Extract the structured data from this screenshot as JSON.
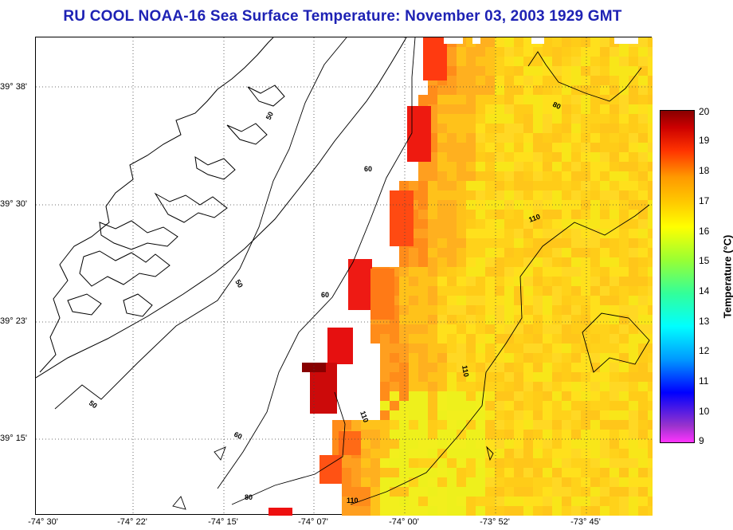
{
  "title": "RU COOL  NOAA-16  Sea Surface Temperature:  November 03, 2003 1929 GMT",
  "lat_labels": [
    "39° 38'",
    "39° 30'",
    "39° 23'",
    "39° 15'"
  ],
  "lon_labels": [
    "-74° 30'",
    "-74° 22'",
    "-74° 15'",
    "-74° 07'",
    "-74° 00'",
    "-73° 52'",
    "-73° 45'"
  ],
  "colorbar": {
    "title": "Temperature (°C)",
    "ticks": [
      "20",
      "19",
      "18",
      "17",
      "16",
      "15",
      "14",
      "13",
      "12",
      "11",
      "10",
      "9"
    ],
    "min": 9,
    "max": 20,
    "colors": [
      "#ff33ff",
      "#9933cc",
      "#0000ff",
      "#0099ff",
      "#00ffff",
      "#33ff99",
      "#99ff33",
      "#ffff00",
      "#ffcc00",
      "#ff9900",
      "#ff3300",
      "#cc0000",
      "#880000"
    ]
  },
  "contour_labels": [
    "50",
    "50",
    "50",
    "60",
    "60",
    "60",
    "80",
    "80",
    "110",
    "110",
    "110",
    "110"
  ]
}
